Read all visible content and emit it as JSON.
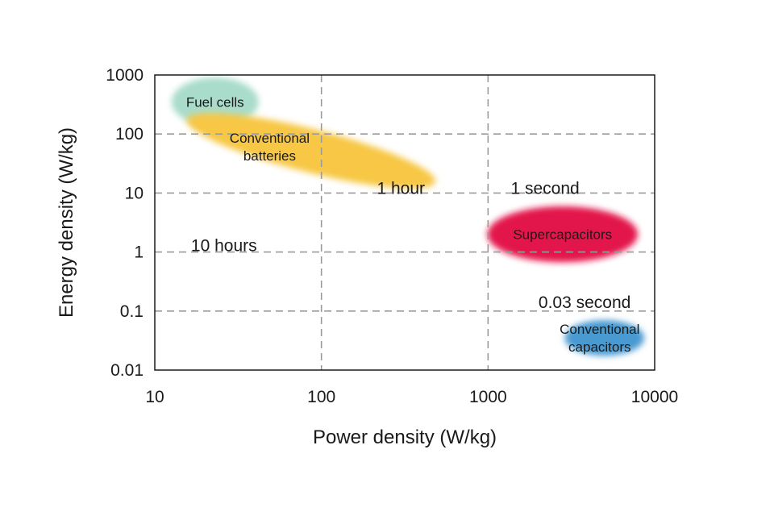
{
  "chart_data": {
    "type": "area",
    "title": "",
    "xlabel": "Power density (W/kg)",
    "ylabel": "Energy density (W/kg)",
    "xscale": "log",
    "yscale": "log",
    "xlim": [
      10,
      10000
    ],
    "ylim": [
      0.01,
      1000
    ],
    "x_ticks": [
      "10",
      "100",
      "1000",
      "10000"
    ],
    "y_ticks": [
      "0.01",
      "0.1",
      "1",
      "10",
      "100",
      "1000"
    ],
    "grid": true,
    "regions": [
      {
        "name": "Fuel cells",
        "lines": [
          "Fuel cells"
        ],
        "x_range": [
          12,
          40
        ],
        "y_range": [
          150,
          1000
        ],
        "center": [
          23,
          350
        ],
        "color": "#a9dccb"
      },
      {
        "name": "Conventional batteries",
        "lines": [
          "Conventional",
          "batteries"
        ],
        "x_range": [
          15,
          500
        ],
        "y_range": [
          15,
          180
        ],
        "center": [
          90,
          50
        ],
        "color": "#f7c744"
      },
      {
        "name": "Supercapacitors",
        "lines": [
          "Supercapacitors"
        ],
        "x_range": [
          1000,
          8000
        ],
        "y_range": [
          0.9,
          8
        ],
        "center": [
          2800,
          2
        ],
        "color": "#e3124b"
      },
      {
        "name": "Conventional capacitors",
        "lines": [
          "Conventional",
          "capacitors"
        ],
        "x_range": [
          3000,
          9000
        ],
        "y_range": [
          0.02,
          0.08
        ],
        "center": [
          5000,
          0.035
        ],
        "color": "#4a9ad1"
      }
    ],
    "annotations": [
      {
        "text": "1 hour",
        "x": 300,
        "y": 12
      },
      {
        "text": "1 second",
        "x": 2200,
        "y": 12
      },
      {
        "text": "10 hours",
        "x": 26,
        "y": 1.3
      },
      {
        "text": "0.03 second",
        "x": 3800,
        "y": 0.14
      }
    ]
  }
}
